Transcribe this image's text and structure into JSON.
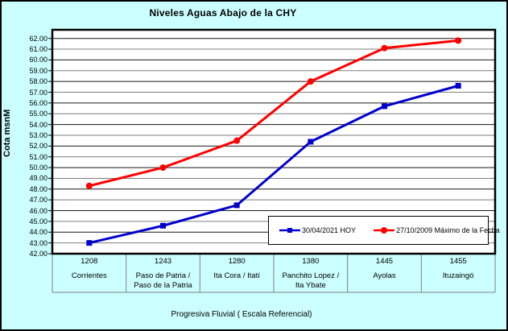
{
  "window": {
    "background_color": "#CCFFFF",
    "plot_background_color": "#FFFFFF",
    "border_color": "#000000"
  },
  "chart_data": {
    "type": "line",
    "title": "Niveles Aguas Abajo de la CHY",
    "xlabel": "Progresiva Fluvial ( Escala Referencial)",
    "ylabel": "Cota msnM",
    "ylim": [
      42,
      62.8
    ],
    "y_major_unit": 1,
    "grid": "on",
    "legend_position": "inside-bottom-right",
    "y_tick_labels": [
      "62.00",
      "61.00",
      "60.00",
      "59.00",
      "58.00",
      "57.00",
      "56.00",
      "55.00",
      "54.00",
      "53.00",
      "52.00",
      "51.00",
      "50.00",
      "49.00",
      "48.00",
      "47.00",
      "46.00",
      "45.00",
      "44.00",
      "43.00",
      "42.00"
    ],
    "categories": [
      {
        "km": "1208",
        "name": "Corrientes",
        "name_lines": [
          "Corrientes"
        ]
      },
      {
        "km": "1243",
        "name": "Paso de Patria / Paso de la Patria",
        "name_lines": [
          "Paso de Patria /",
          "Paso de la Patria"
        ]
      },
      {
        "km": "1280",
        "name": "Ita Cora / Itatí",
        "name_lines": [
          "Ita Cora / Itatí"
        ]
      },
      {
        "km": "1380",
        "name": "Panchito Lopez / Ita Ybate",
        "name_lines": [
          "Panchito Lopez /",
          "Ita Ybate"
        ]
      },
      {
        "km": "1445",
        "name": "Ayolas",
        "name_lines": [
          "Ayolas"
        ]
      },
      {
        "km": "1455",
        "name": "Ituzaingó",
        "name_lines": [
          "Ituzaingó"
        ]
      }
    ],
    "series": [
      {
        "name": "30/04/2021 HOY",
        "color": "#0000CC",
        "marker": "square",
        "values": [
          43.0,
          44.6,
          46.5,
          52.4,
          55.7,
          57.6
        ]
      },
      {
        "name": "27/10/2009 Máximo de la Fecha",
        "color": "#FF0000",
        "marker": "circle",
        "values": [
          48.3,
          50.0,
          52.5,
          58.0,
          61.1,
          61.8
        ]
      }
    ]
  }
}
